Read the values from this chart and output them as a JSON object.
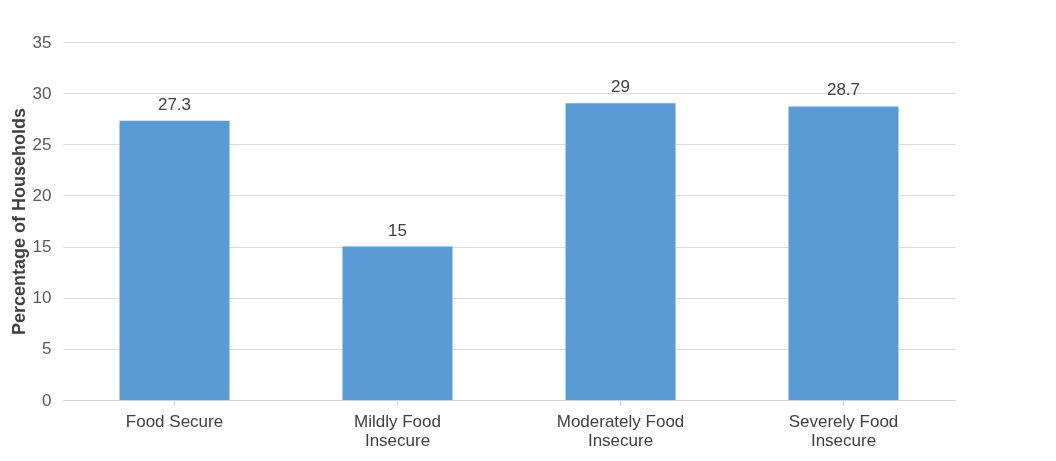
{
  "chart_data": {
    "type": "bar",
    "ylabel": "Percentage of Households",
    "categories": [
      "Food Secure",
      "Mildly Food Insecure",
      "Moderately Food Insecure",
      "Severely Food Insecure"
    ],
    "values": [
      27.3,
      15,
      29,
      28.7
    ],
    "color": "#5b9bd5",
    "ylim": [
      0,
      35
    ],
    "yticks": [
      0,
      5,
      10,
      15,
      20,
      25,
      30,
      35
    ],
    "grid": "y",
    "data_labels": true
  }
}
